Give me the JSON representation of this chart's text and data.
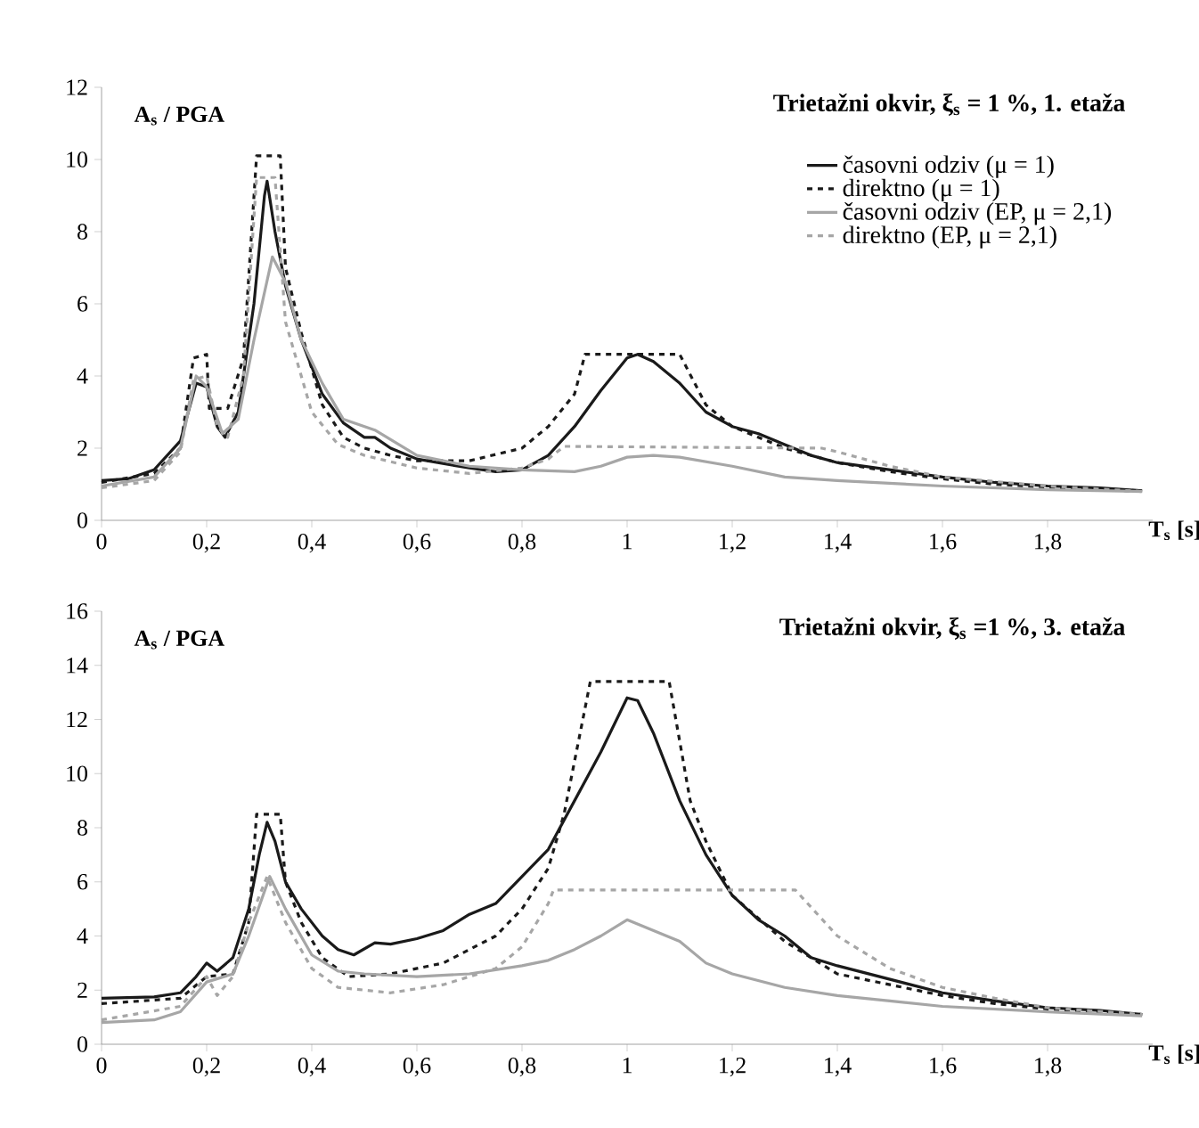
{
  "chart_data": [
    {
      "type": "line",
      "title": "Trietažni okvir, ξ$_{s}$ = 1 %, 1. etaža",
      "xlabel": "T$_{s}$ [s]",
      "ylabel": "A$_{s}$ / PGA",
      "xlim": [
        0,
        2
      ],
      "ylim": [
        0,
        12
      ],
      "xticks": [
        0,
        {
          "value": 0.2,
          "label": "0,2"
        },
        {
          "value": 0.4,
          "label": "0,4"
        },
        {
          "value": 0.6,
          "label": "0,6"
        },
        {
          "value": 0.8,
          "label": "0,8"
        },
        1,
        {
          "value": 1.2,
          "label": "1,2"
        },
        {
          "value": 1.4,
          "label": "1,4"
        },
        {
          "value": 1.6,
          "label": "1,6"
        },
        {
          "value": 1.8,
          "label": "1,8"
        }
      ],
      "yticks": [
        0,
        2,
        4,
        6,
        8,
        10,
        12
      ],
      "legend": "top right",
      "grid": false,
      "series": [
        {
          "name": "časovni odziv (μ = 1)",
          "color": "#1a1a1a",
          "line_style": "solid",
          "x": [
            0,
            0.05,
            0.1,
            0.15,
            0.18,
            0.2,
            0.22,
            0.235,
            0.26,
            0.29,
            0.31,
            0.315,
            0.33,
            0.35,
            0.38,
            0.42,
            0.46,
            0.5,
            0.52,
            0.55,
            0.6,
            0.7,
            0.75,
            0.8,
            0.85,
            0.9,
            0.95,
            1.0,
            1.02,
            1.05,
            1.1,
            1.15,
            1.2,
            1.25,
            1.3,
            1.35,
            1.4,
            1.5,
            1.6,
            1.7,
            1.8,
            1.9,
            1.98
          ],
          "values": [
            1.1,
            1.15,
            1.4,
            2.2,
            3.8,
            3.7,
            2.6,
            2.3,
            3.0,
            6.0,
            9.0,
            9.4,
            8.0,
            6.5,
            5.0,
            3.5,
            2.7,
            2.3,
            2.3,
            2.0,
            1.7,
            1.45,
            1.35,
            1.4,
            1.8,
            2.6,
            3.6,
            4.5,
            4.6,
            4.4,
            3.8,
            3.0,
            2.6,
            2.4,
            2.1,
            1.8,
            1.6,
            1.4,
            1.2,
            1.05,
            0.95,
            0.9,
            0.82
          ]
        },
        {
          "name": "direktno (μ = 1)",
          "color": "#1a1a1a",
          "line_style": "dashed",
          "x": [
            0,
            0.1,
            0.15,
            0.175,
            0.2,
            0.205,
            0.24,
            0.27,
            0.295,
            0.34,
            0.35,
            0.38,
            0.42,
            0.46,
            0.5,
            0.55,
            0.6,
            0.7,
            0.8,
            0.85,
            0.9,
            0.92,
            1.1,
            1.15,
            1.2,
            1.3,
            1.4,
            1.5,
            1.6,
            1.7,
            1.8,
            1.9,
            1.98
          ],
          "values": [
            1.05,
            1.3,
            2.0,
            4.5,
            4.6,
            3.1,
            3.1,
            4.5,
            10.1,
            10.1,
            7.0,
            5.2,
            3.2,
            2.3,
            2.0,
            1.8,
            1.65,
            1.65,
            2.0,
            2.6,
            3.5,
            4.6,
            4.6,
            3.2,
            2.6,
            2.0,
            1.6,
            1.35,
            1.15,
            1.0,
            0.92,
            0.86,
            0.8
          ]
        },
        {
          "name": "časovni odziv (EP, μ = 2,1)",
          "color": "#a6a6a6",
          "line_style": "solid",
          "x": [
            0,
            0.1,
            0.15,
            0.18,
            0.2,
            0.23,
            0.26,
            0.29,
            0.325,
            0.35,
            0.38,
            0.42,
            0.46,
            0.52,
            0.6,
            0.7,
            0.8,
            0.9,
            0.95,
            1.0,
            1.05,
            1.1,
            1.2,
            1.3,
            1.4,
            1.6,
            1.8,
            1.98
          ],
          "values": [
            0.95,
            1.2,
            2.0,
            4.0,
            3.7,
            2.4,
            2.8,
            5.0,
            7.3,
            6.6,
            5.0,
            3.8,
            2.8,
            2.5,
            1.8,
            1.5,
            1.4,
            1.35,
            1.5,
            1.75,
            1.8,
            1.75,
            1.5,
            1.2,
            1.1,
            0.95,
            0.85,
            0.8
          ]
        },
        {
          "name": "direktno (EP, μ = 2,1)",
          "color": "#a6a6a6",
          "line_style": "dashed",
          "x": [
            0,
            0.1,
            0.15,
            0.175,
            0.2,
            0.22,
            0.24,
            0.27,
            0.295,
            0.33,
            0.35,
            0.4,
            0.45,
            0.5,
            0.6,
            0.7,
            0.8,
            0.85,
            0.88,
            1.37,
            1.4,
            1.5,
            1.6,
            1.8,
            1.98
          ],
          "values": [
            0.9,
            1.1,
            1.9,
            3.9,
            4.0,
            2.6,
            2.3,
            4.0,
            9.5,
            9.5,
            5.5,
            3.0,
            2.1,
            1.8,
            1.45,
            1.3,
            1.45,
            1.7,
            2.05,
            2.0,
            1.9,
            1.5,
            1.2,
            0.95,
            0.8
          ]
        }
      ]
    },
    {
      "type": "line",
      "title": "Trietažni okvir, ξ$_{s}$ =1 %, 3. etaža",
      "xlabel": "T$_{s}$ [s]",
      "ylabel": "A$_{s}$ / PGA",
      "xlim": [
        0,
        2
      ],
      "ylim": [
        0,
        16
      ],
      "xticks": [
        0,
        {
          "value": 0.2,
          "label": "0,2"
        },
        {
          "value": 0.4,
          "label": "0,4"
        },
        {
          "value": 0.6,
          "label": "0,6"
        },
        {
          "value": 0.8,
          "label": "0,8"
        },
        1,
        {
          "value": 1.2,
          "label": "1,2"
        },
        {
          "value": 1.4,
          "label": "1,4"
        },
        {
          "value": 1.6,
          "label": "1,6"
        },
        {
          "value": 1.8,
          "label": "1,8"
        }
      ],
      "yticks": [
        0,
        2,
        4,
        6,
        8,
        10,
        12,
        14,
        16
      ],
      "grid": false,
      "series": [
        {
          "color": "#1a1a1a",
          "line_style": "solid",
          "x": [
            0,
            0.1,
            0.15,
            0.18,
            0.2,
            0.22,
            0.25,
            0.28,
            0.3,
            0.315,
            0.33,
            0.35,
            0.38,
            0.42,
            0.45,
            0.48,
            0.52,
            0.55,
            0.6,
            0.65,
            0.7,
            0.75,
            0.8,
            0.85,
            0.9,
            0.95,
            1.0,
            1.02,
            1.05,
            1.1,
            1.15,
            1.2,
            1.25,
            1.3,
            1.35,
            1.4,
            1.5,
            1.6,
            1.7,
            1.8,
            1.9,
            1.98
          ],
          "values": [
            1.7,
            1.75,
            1.9,
            2.5,
            3.0,
            2.7,
            3.2,
            5.0,
            7.0,
            8.2,
            7.5,
            6.0,
            5.0,
            4.0,
            3.5,
            3.3,
            3.75,
            3.7,
            3.9,
            4.2,
            4.8,
            5.2,
            6.2,
            7.2,
            9.0,
            10.8,
            12.8,
            12.7,
            11.5,
            9.0,
            7.0,
            5.5,
            4.6,
            4.0,
            3.2,
            2.9,
            2.4,
            1.9,
            1.6,
            1.35,
            1.25,
            1.1
          ]
        },
        {
          "color": "#1a1a1a",
          "line_style": "dashed",
          "x": [
            0,
            0.15,
            0.2,
            0.25,
            0.28,
            0.295,
            0.34,
            0.35,
            0.38,
            0.42,
            0.47,
            0.55,
            0.65,
            0.75,
            0.8,
            0.85,
            0.88,
            0.93,
            1.08,
            1.12,
            1.15,
            1.2,
            1.3,
            1.4,
            1.5,
            1.6,
            1.7,
            1.8,
            1.9,
            1.98
          ],
          "values": [
            1.5,
            1.7,
            2.5,
            2.6,
            4.5,
            8.5,
            8.5,
            6.0,
            4.5,
            3.2,
            2.5,
            2.6,
            3.0,
            4.0,
            5.0,
            6.5,
            8.5,
            13.4,
            13.4,
            9.0,
            7.5,
            5.5,
            3.8,
            2.6,
            2.2,
            1.8,
            1.5,
            1.3,
            1.2,
            1.1
          ]
        },
        {
          "color": "#a6a6a6",
          "line_style": "solid",
          "x": [
            0,
            0.1,
            0.15,
            0.2,
            0.25,
            0.28,
            0.32,
            0.35,
            0.4,
            0.45,
            0.5,
            0.6,
            0.7,
            0.8,
            0.85,
            0.9,
            0.95,
            1.0,
            1.05,
            1.1,
            1.15,
            1.2,
            1.3,
            1.4,
            1.5,
            1.6,
            1.8,
            1.98
          ],
          "values": [
            0.8,
            0.9,
            1.2,
            2.3,
            2.6,
            4.0,
            6.2,
            5.0,
            3.3,
            2.7,
            2.6,
            2.5,
            2.6,
            2.9,
            3.1,
            3.5,
            4.0,
            4.6,
            4.2,
            3.8,
            3.0,
            2.6,
            2.1,
            1.8,
            1.6,
            1.4,
            1.2,
            1.05
          ]
        },
        {
          "color": "#a6a6a6",
          "line_style": "dashed",
          "x": [
            0,
            0.15,
            0.2,
            0.22,
            0.25,
            0.28,
            0.315,
            0.35,
            0.4,
            0.45,
            0.55,
            0.65,
            0.75,
            0.8,
            0.85,
            0.86,
            1.32,
            1.4,
            1.5,
            1.6,
            1.7,
            1.8,
            1.98
          ],
          "values": [
            0.9,
            1.4,
            2.5,
            1.8,
            2.5,
            4.5,
            6.2,
            4.5,
            2.8,
            2.1,
            1.9,
            2.2,
            2.8,
            3.6,
            5.2,
            5.7,
            5.7,
            4.0,
            2.8,
            2.1,
            1.7,
            1.35,
            1.1
          ]
        }
      ]
    }
  ]
}
